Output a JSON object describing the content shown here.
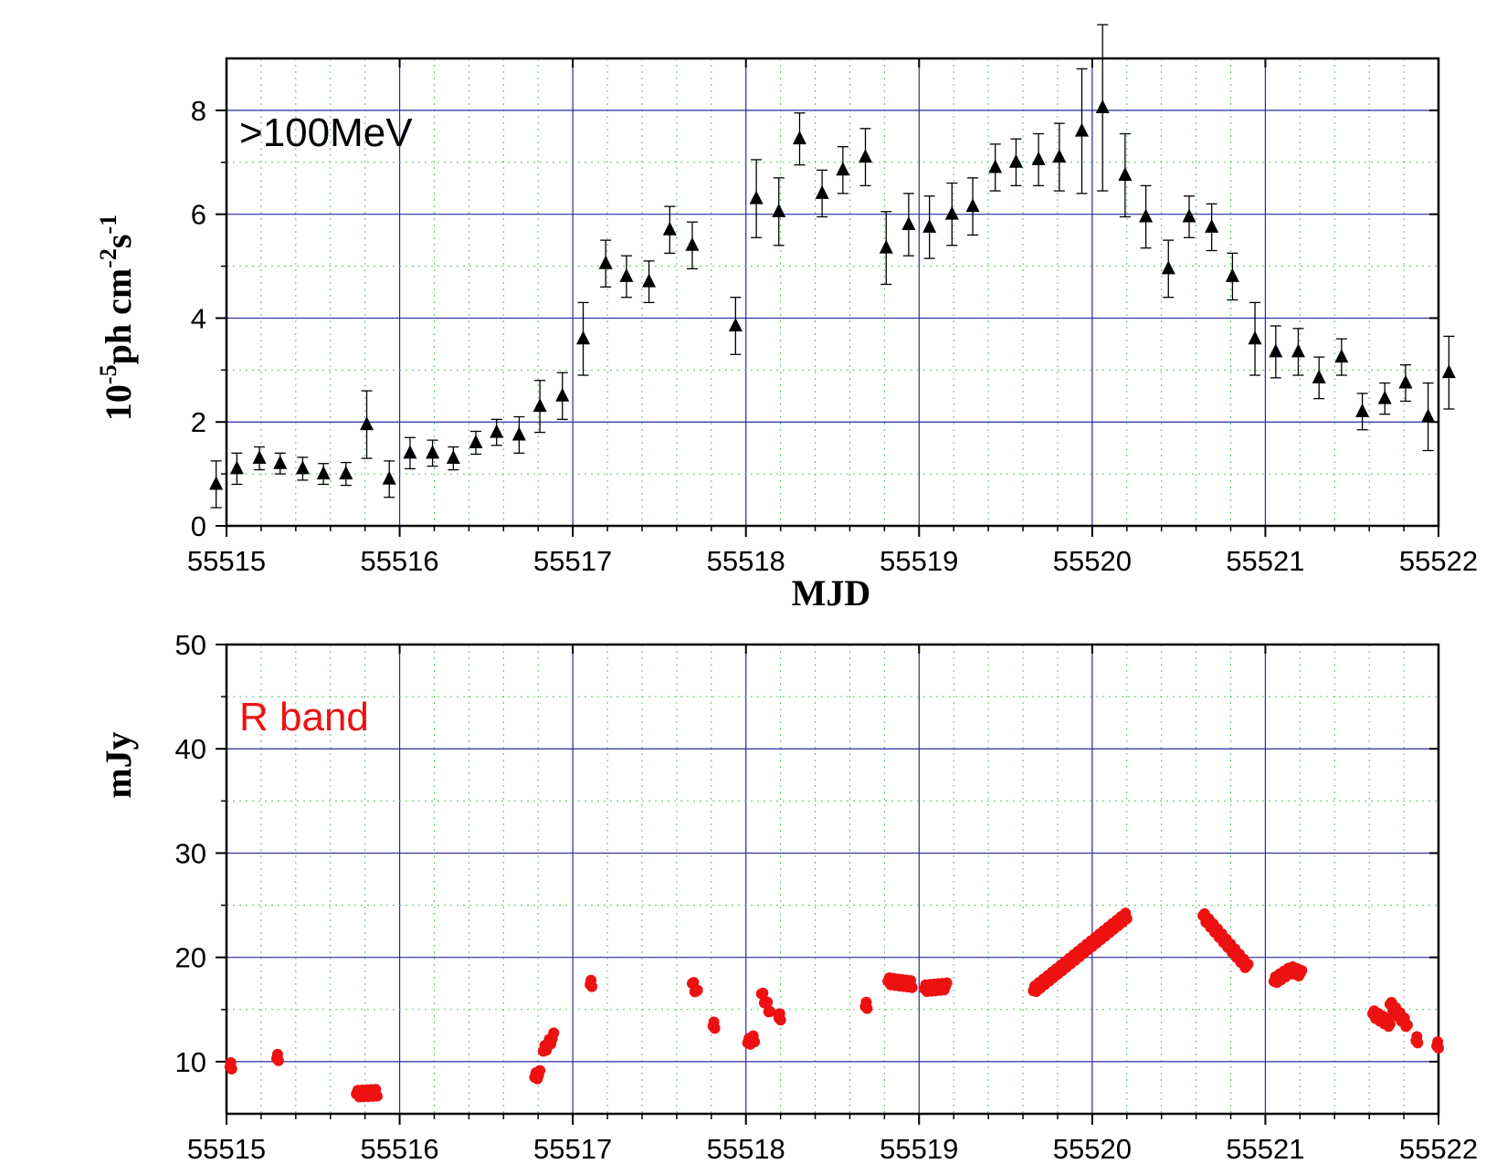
{
  "chart_data": [
    {
      "type": "scatter",
      "title": "",
      "annotation": ">100MeV",
      "xlabel": "MJD",
      "ylabel": "10-5ph cm-2s-1",
      "ylabel_parts": {
        "base": "10",
        "exp1": "-5",
        "mid1": "ph cm",
        "exp2": "-2",
        "mid2": "s",
        "exp3": "-1"
      },
      "xlim": [
        55515,
        55522
      ],
      "ylim": [
        0,
        9
      ],
      "xticks": [
        "55515",
        "55516",
        "55517",
        "55518",
        "55519",
        "55520",
        "55521",
        "55522"
      ],
      "yticks": [
        "0",
        "2",
        "4",
        "6",
        "8"
      ],
      "grid": true,
      "marker": "triangle",
      "color": "#000000",
      "series": [
        {
          "x": [
            55514.94,
            55515.06,
            55515.19,
            55515.31,
            55515.44,
            55515.56,
            55515.69,
            55515.81,
            55515.94,
            55516.06,
            55516.19,
            55516.31,
            55516.44,
            55516.56,
            55516.69,
            55516.81,
            55516.94,
            55517.06,
            55517.19,
            55517.31,
            55517.44,
            55517.56,
            55517.69,
            55517.94,
            55518.06,
            55518.19,
            55518.31,
            55518.44,
            55518.56,
            55518.69,
            55518.81,
            55518.94,
            55519.06,
            55519.19,
            55519.31,
            55519.44,
            55519.56,
            55519.69,
            55519.81,
            55519.94,
            55520.06,
            55520.19,
            55520.31,
            55520.44,
            55520.56,
            55520.69,
            55520.81,
            55520.94,
            55521.06,
            55521.19,
            55521.31,
            55521.44,
            55521.56,
            55521.69,
            55521.81,
            55521.94,
            55522.06
          ],
          "y": [
            0.8,
            1.1,
            1.3,
            1.2,
            1.1,
            1.0,
            1.0,
            1.95,
            0.9,
            1.4,
            1.4,
            1.3,
            1.6,
            1.8,
            1.75,
            2.3,
            2.5,
            3.6,
            5.05,
            4.8,
            4.7,
            5.7,
            5.4,
            3.85,
            6.3,
            6.05,
            7.45,
            6.4,
            6.85,
            7.1,
            5.35,
            5.8,
            5.75,
            6.0,
            6.15,
            6.9,
            7.0,
            7.05,
            7.1,
            7.6,
            8.05,
            6.75,
            5.95,
            4.95,
            5.95,
            5.75,
            4.8,
            3.6,
            3.35,
            3.35,
            2.85,
            3.25,
            2.2,
            2.45,
            2.75,
            2.1,
            2.95
          ],
          "yerr": [
            0.45,
            0.3,
            0.22,
            0.2,
            0.22,
            0.2,
            0.22,
            0.65,
            0.35,
            0.3,
            0.25,
            0.22,
            0.22,
            0.25,
            0.35,
            0.5,
            0.45,
            0.7,
            0.45,
            0.4,
            0.4,
            0.45,
            0.45,
            0.55,
            0.75,
            0.65,
            0.5,
            0.45,
            0.45,
            0.55,
            0.7,
            0.6,
            0.6,
            0.6,
            0.55,
            0.45,
            0.45,
            0.5,
            0.65,
            1.2,
            1.6,
            0.8,
            0.6,
            0.55,
            0.4,
            0.45,
            0.45,
            0.7,
            0.5,
            0.45,
            0.4,
            0.35,
            0.35,
            0.3,
            0.35,
            0.65,
            0.7
          ]
        }
      ]
    },
    {
      "type": "scatter",
      "title": "",
      "annotation": "R band",
      "xlabel": "",
      "ylabel": "mJy",
      "xlim": [
        55515,
        55522
      ],
      "ylim": [
        5,
        50
      ],
      "xticks": [
        "55515",
        "55516",
        "55517",
        "55518",
        "55519",
        "55520",
        "55521",
        "55522"
      ],
      "yticks": [
        "10",
        "20",
        "30",
        "40",
        "50"
      ],
      "grid": true,
      "marker": "circle",
      "color": "#ee1111",
      "series": [
        {
          "segments": [
            {
              "x": [
                55515.02,
                55515.03
              ],
              "y": [
                9.5,
                9.6
              ]
            },
            {
              "x": [
                55515.29,
                55515.3
              ],
              "y": [
                10.3,
                10.4
              ]
            },
            {
              "x": [
                55515.75,
                55515.87
              ],
              "y": [
                6.9,
                7.0
              ]
            },
            {
              "x": [
                55516.78,
                55516.81
              ],
              "y": [
                8.5,
                8.8
              ]
            },
            {
              "x": [
                55516.83,
                55516.89
              ],
              "y": [
                11.0,
                12.4
              ]
            },
            {
              "x": [
                55517.1,
                55517.11
              ],
              "y": [
                17.4,
                17.5
              ]
            },
            {
              "x": [
                55517.69,
                55517.72
              ],
              "y": [
                17.5,
                16.5
              ]
            },
            {
              "x": [
                55517.81,
                55517.82
              ],
              "y": [
                13.4,
                13.5
              ]
            },
            {
              "x": [
                55518.01,
                55518.05
              ],
              "y": [
                11.8,
                12.2
              ]
            },
            {
              "x": [
                55518.09,
                55518.14
              ],
              "y": [
                16.5,
                14.8
              ]
            },
            {
              "x": [
                55518.19,
                55518.2
              ],
              "y": [
                14.2,
                14.3
              ]
            },
            {
              "x": [
                55518.69,
                55518.7
              ],
              "y": [
                15.3,
                15.4
              ]
            },
            {
              "x": [
                55518.82,
                55518.96
              ],
              "y": [
                17.7,
                17.4
              ]
            },
            {
              "x": [
                55519.03,
                55519.16
              ],
              "y": [
                17.0,
                17.2
              ]
            },
            {
              "x": [
                55519.66,
                55520.2
              ],
              "y": [
                16.8,
                24.0
              ]
            },
            {
              "x": [
                55520.64,
                55520.9
              ],
              "y": [
                24.0,
                19.0
              ]
            },
            {
              "x": [
                55521.05,
                55521.15
              ],
              "y": [
                17.7,
                18.8
              ]
            },
            {
              "x": [
                55521.15,
                55521.21
              ],
              "y": [
                18.8,
                18.4
              ]
            },
            {
              "x": [
                55521.62,
                55521.72
              ],
              "y": [
                14.6,
                13.6
              ]
            },
            {
              "x": [
                55521.72,
                55521.82
              ],
              "y": [
                15.5,
                13.5
              ]
            },
            {
              "x": [
                55521.87,
                55521.88
              ],
              "y": [
                12.0,
                12.1
              ]
            },
            {
              "x": [
                55521.99,
                55522.0
              ],
              "y": [
                11.5,
                11.6
              ]
            }
          ]
        }
      ]
    }
  ]
}
